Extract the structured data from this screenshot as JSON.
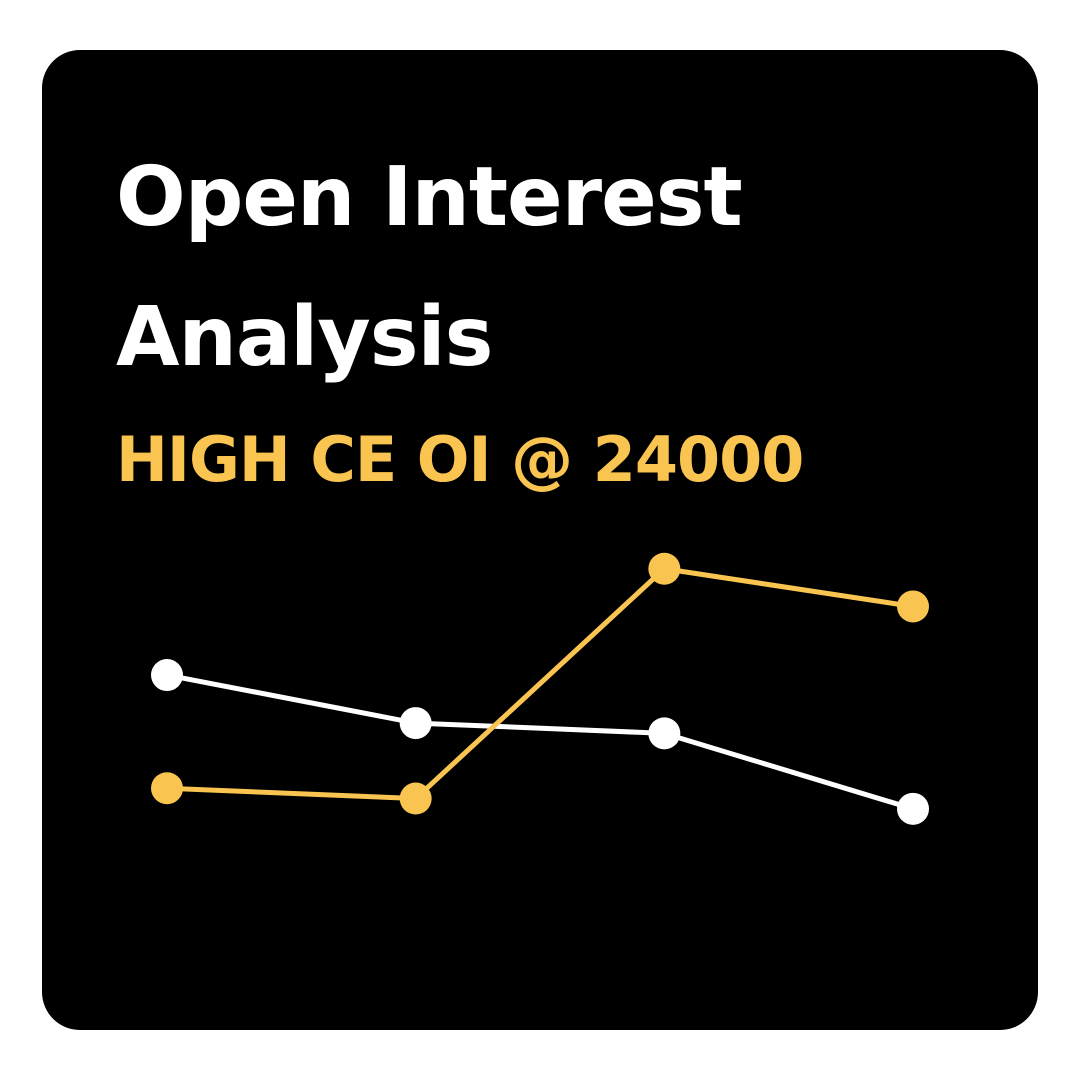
{
  "header": {
    "title_line1": "Open Interest",
    "title_line2": "Analysis",
    "subtitle": "HIGH CE OI @ 24000"
  },
  "colors": {
    "background": "#000000",
    "title": "#ffffff",
    "accent": "#f9c450",
    "series_white": "#ffffff"
  },
  "chart_data": {
    "type": "line",
    "x": [
      1,
      2,
      3,
      4
    ],
    "series": [
      {
        "color": "#f9c450",
        "values": [
          3.2,
          2.9,
          9.6,
          8.5
        ]
      },
      {
        "color": "#ffffff",
        "values": [
          6.5,
          5.1,
          4.8,
          2.6
        ]
      }
    ],
    "ylim": [
      0,
      10
    ],
    "grid": false,
    "axes_visible": false,
    "legend": "none"
  }
}
